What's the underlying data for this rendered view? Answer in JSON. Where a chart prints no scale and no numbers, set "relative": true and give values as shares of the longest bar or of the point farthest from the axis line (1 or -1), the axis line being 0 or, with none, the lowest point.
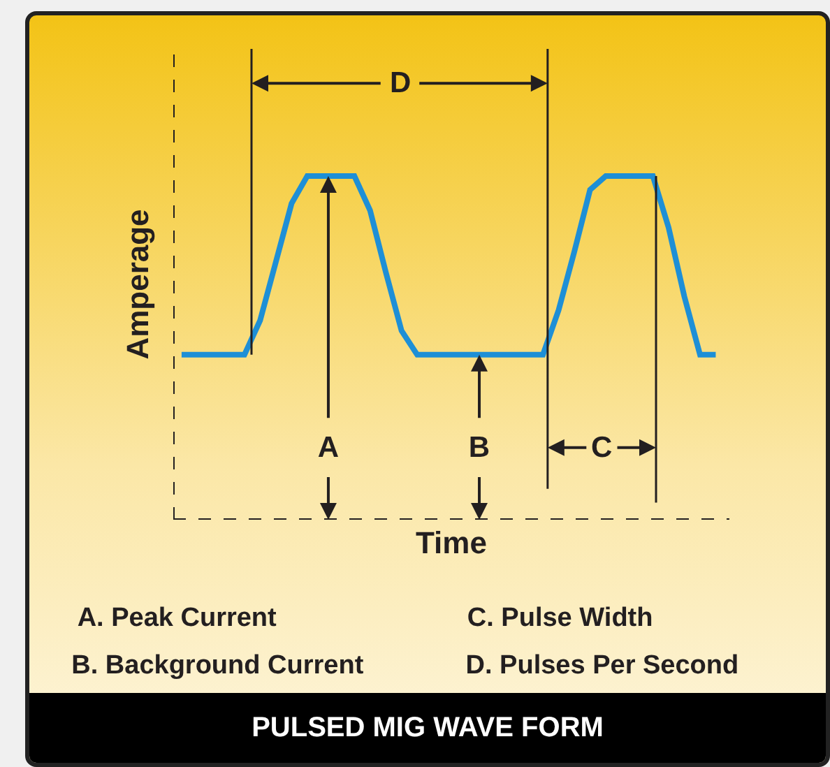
{
  "chart_data": {
    "type": "line",
    "title": "PULSED MIG WAVE FORM",
    "xlabel": "Time",
    "ylabel": "Amperage",
    "relative": true,
    "line_style": "solid",
    "categories": [
      null,
      null,
      null,
      null,
      null,
      null,
      null,
      null,
      null,
      null,
      null,
      null,
      null,
      null,
      null,
      null,
      null,
      null,
      null,
      null,
      null,
      null,
      null,
      null,
      null,
      null,
      null,
      null,
      null,
      null,
      null,
      null,
      null,
      null,
      null
    ],
    "series": [
      {
        "color": "#1e8fd6",
        "values": [
          0.48,
          0.48,
          0.48,
          0.48,
          0.48,
          0.58,
          0.75,
          0.92,
          1,
          1,
          1,
          1,
          0.9,
          0.72,
          0.55,
          0.48,
          0.48,
          0.48,
          0.48,
          0.48,
          0.48,
          0.48,
          0.48,
          0.48,
          0.61,
          0.78,
          0.96,
          1,
          1,
          1,
          1,
          0.85,
          0.65,
          0.48,
          0.48
        ]
      }
    ],
    "annotations": [
      "A",
      "B",
      "C",
      "D",
      "A. Peak Current",
      "B. Background Current",
      "C. Pulse Width",
      "D. Pulses Per Second"
    ]
  }
}
